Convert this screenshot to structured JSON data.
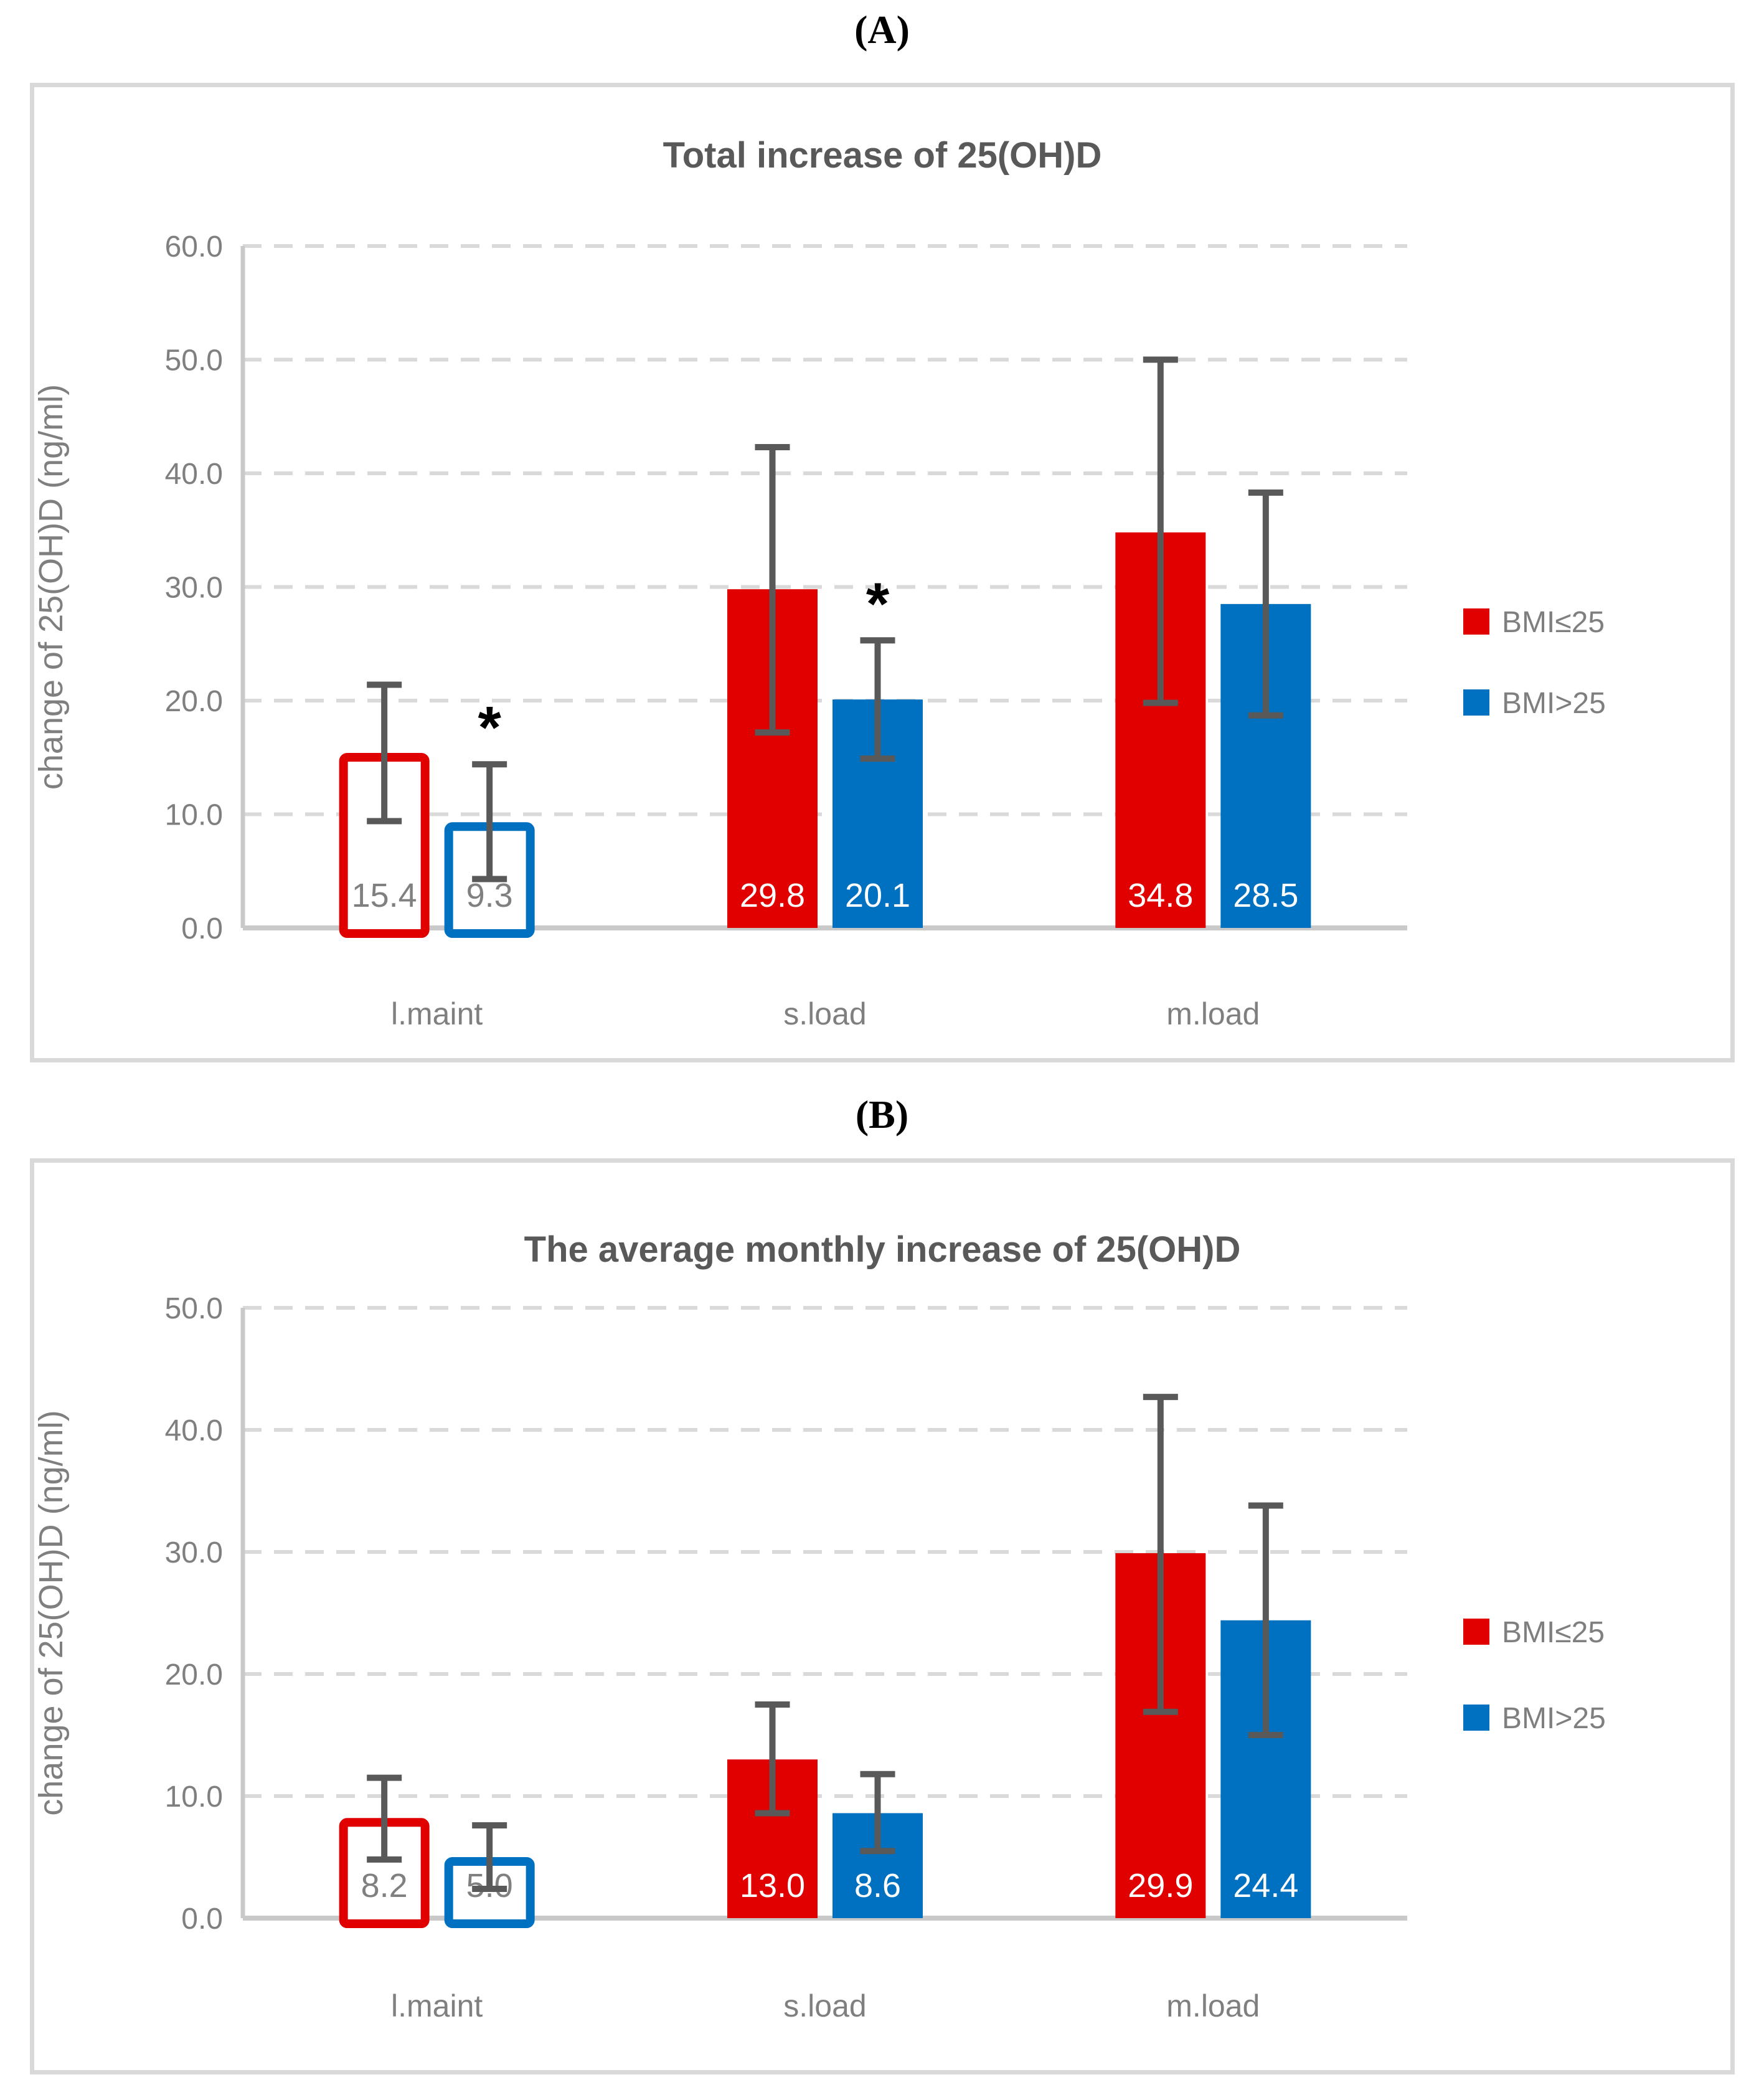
{
  "figure": {
    "panels": [
      {
        "section_label": "(A)"
      },
      {
        "section_label": "(B)"
      }
    ]
  },
  "style": {
    "red": "#e00000",
    "blue": "#0070c0",
    "error_bar_color": "#595959",
    "gridline_color": "#d9d9d9",
    "axis_line_color": "#c9c9c9",
    "tick_text_color": "#7f7f7f",
    "title_color": "#595959",
    "hollow_label_color": "#808080",
    "solid_label_color": "#ffffff",
    "panel_border_color": "#d9d9d9",
    "asterisk_color": "#000000"
  },
  "chart_data": [
    {
      "type": "bar",
      "title": "Total increase of 25(OH)D",
      "ylabel": "change of 25(OH)D (ng/ml)",
      "xlabel": "",
      "categories": [
        "l.maint",
        "s.load",
        "m.load"
      ],
      "ylim": [
        0,
        60
      ],
      "ytick_step": 10,
      "grid": "horizontal-dashed",
      "legend_position": "right",
      "series": [
        {
          "name": "BMI≤25",
          "color": "#e00000",
          "values": [
            15.4,
            29.8,
            34.8
          ],
          "error_low": [
            9.4,
            17.2,
            19.8
          ],
          "error_high": [
            21.4,
            42.3,
            50.0
          ],
          "hollow": [
            true,
            false,
            false
          ],
          "significance": [
            false,
            false,
            false
          ]
        },
        {
          "name": "BMI>25",
          "color": "#0070c0",
          "values": [
            9.3,
            20.1,
            28.5
          ],
          "error_low": [
            4.3,
            14.9,
            18.7
          ],
          "error_high": [
            14.4,
            25.3,
            38.3
          ],
          "hollow": [
            true,
            false,
            false
          ],
          "significance": [
            true,
            true,
            false
          ]
        }
      ]
    },
    {
      "type": "bar",
      "title": "The average monthly increase of 25(OH)D",
      "ylabel": "change of 25(OH)D (ng/ml)",
      "xlabel": "",
      "categories": [
        "l.maint",
        "s.load",
        "m.load"
      ],
      "ylim": [
        0,
        50
      ],
      "ytick_step": 10,
      "grid": "horizontal-dashed",
      "legend_position": "right",
      "series": [
        {
          "name": "BMI≤25",
          "color": "#e00000",
          "values": [
            8.2,
            13.0,
            29.9
          ],
          "error_low": [
            4.8,
            8.6,
            16.9
          ],
          "error_high": [
            11.5,
            17.5,
            42.7
          ],
          "hollow": [
            true,
            false,
            false
          ],
          "significance": [
            false,
            false,
            false
          ]
        },
        {
          "name": "BMI>25",
          "color": "#0070c0",
          "values": [
            5.0,
            8.6,
            24.4
          ],
          "error_low": [
            2.4,
            5.5,
            15.0
          ],
          "error_high": [
            7.6,
            11.8,
            33.8
          ],
          "hollow": [
            true,
            false,
            false
          ],
          "significance": [
            false,
            false,
            false
          ]
        }
      ]
    }
  ]
}
